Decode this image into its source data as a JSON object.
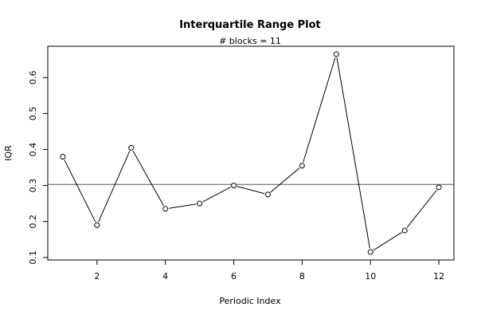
{
  "chart_data": {
    "type": "line",
    "title": "Interquartile Range Plot",
    "subtitle": "# blocks =  11",
    "xlabel": "Periodic Index",
    "ylabel": "IQR",
    "x": [
      1,
      2,
      3,
      4,
      5,
      6,
      7,
      8,
      9,
      10,
      11,
      12
    ],
    "y": [
      0.38,
      0.19,
      0.405,
      0.235,
      0.25,
      0.3,
      0.275,
      0.355,
      0.665,
      0.115,
      0.175,
      0.295
    ],
    "reference_line": 0.303,
    "xlim": [
      0.56,
      12.44
    ],
    "ylim": [
      0.093,
      0.687
    ],
    "x_ticks": [
      2,
      4,
      6,
      8,
      10,
      12
    ],
    "y_ticks": [
      0.1,
      0.2,
      0.3,
      0.4,
      0.5,
      0.6
    ],
    "grid": false,
    "legend": "none",
    "colors": {
      "line": "#000000",
      "point_fill": "#ffffff",
      "reference": "#555555"
    }
  }
}
